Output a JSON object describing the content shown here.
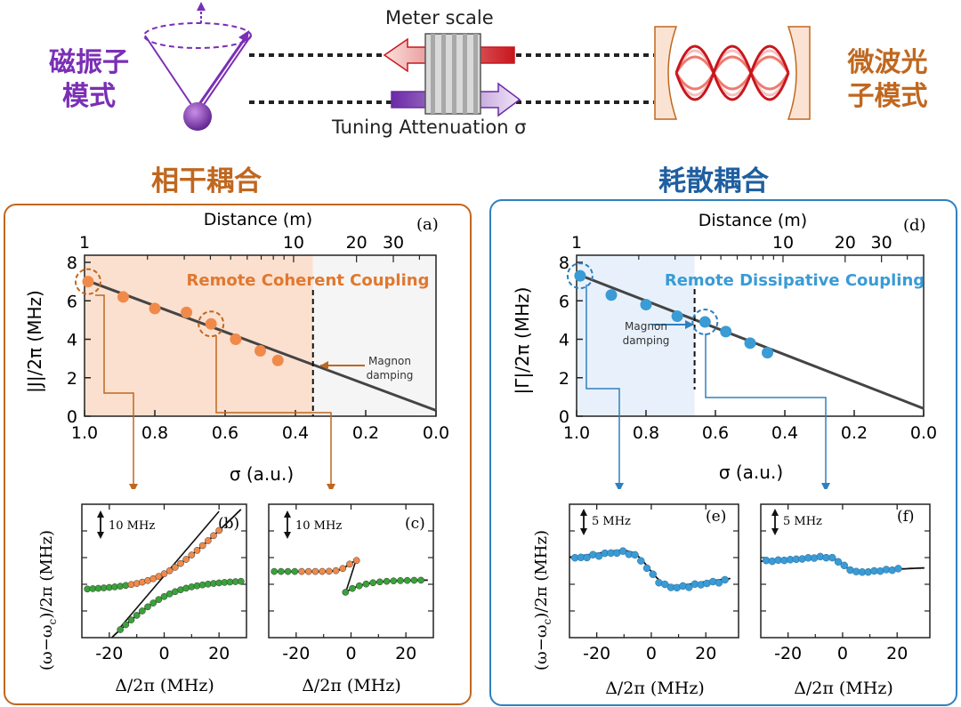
{
  "header": {
    "magnon_mode": [
      "磁振子",
      "模式"
    ],
    "photon_mode": [
      "微波光",
      "子模式"
    ],
    "meter_scale": "Meter scale",
    "tuning": "Tuning Attenuation σ",
    "coherent_title": "相干耦合",
    "dissipative_title": "耗散耦合"
  },
  "colors": {
    "orange": "#c0671f",
    "orange_light": "#f7c9a8",
    "orange_dot": "#f08a4b",
    "blue": "#2f80c0",
    "blue_dot": "#3a9bd5",
    "purple": "#7a2fb5",
    "green": "#3aa23a",
    "red": "#c8161d"
  },
  "panel_a": {
    "label": "(a)",
    "top_axis_label": "Distance (m)",
    "top_ticks": [
      "1",
      "10",
      "20",
      "30"
    ],
    "bottom_ticks": [
      "1.0",
      "0.8",
      "0.6",
      "0.4",
      "0.2",
      "0.0"
    ],
    "xlabel": "σ (a.u.)",
    "ylabel": "|J|/2π (MHz)",
    "yticks": [
      "0",
      "2",
      "4",
      "6",
      "8"
    ],
    "title": "Remote Coherent Coupling",
    "annotation": [
      "Magnon",
      "damping"
    ]
  },
  "panel_d": {
    "label": "(d)",
    "top_axis_label": "Distance (m)",
    "top_ticks": [
      "1",
      "10",
      "20",
      "30"
    ],
    "bottom_ticks": [
      "1.0",
      "0.8",
      "0.6",
      "0.4",
      "0.2",
      "0.0"
    ],
    "xlabel": "σ (a.u.)",
    "ylabel": "|Γ|/2π (MHz)",
    "yticks": [
      "0",
      "2",
      "4",
      "6",
      "8"
    ],
    "title": "Remote Dissipative Coupling",
    "annotation": [
      "Magnon",
      "damping"
    ]
  },
  "panel_b": {
    "label": "(b)",
    "scale": "10 MHz"
  },
  "panel_c": {
    "label": "(c)",
    "scale": "10 MHz"
  },
  "panel_e": {
    "label": "(e)",
    "scale": "5 MHz"
  },
  "panel_f": {
    "label": "(f)",
    "scale": "5 MHz"
  },
  "small_axes": {
    "xticks": [
      "-20",
      "0",
      "20"
    ],
    "xlabel": "Δ/2π  (MHz)",
    "ylabel": "(ω−ω",
    "ylabel_sub": "c",
    "ylabel_tail": ")/2π  (MHz)"
  },
  "chart_data": [
    {
      "type": "scatter",
      "title": "Remote Coherent Coupling",
      "xlabel": "σ (a.u.)",
      "ylabel": "|J|/2π (MHz)",
      "xlim": [
        1.0,
        0.0
      ],
      "ylim": [
        0,
        8
      ],
      "series": [
        {
          "name": "data",
          "x": [
            0.99,
            0.89,
            0.8,
            0.71,
            0.64,
            0.57,
            0.5,
            0.45
          ],
          "y": [
            7.0,
            6.2,
            5.6,
            5.4,
            4.8,
            4.0,
            3.4,
            2.9
          ]
        },
        {
          "name": "fit",
          "x": [
            1.0,
            0.0
          ],
          "y": [
            7.1,
            0.3
          ]
        }
      ],
      "magnon_damping_sigma": 0.35,
      "top_axis": {
        "label": "Distance (m)",
        "ticks": [
          1,
          10,
          20,
          30
        ]
      }
    },
    {
      "type": "scatter",
      "title": "Remote Dissipative Coupling",
      "xlabel": "σ (a.u.)",
      "ylabel": "|Γ|/2π (MHz)",
      "xlim": [
        1.0,
        0.0
      ],
      "ylim": [
        0,
        8
      ],
      "series": [
        {
          "name": "data",
          "x": [
            0.99,
            0.9,
            0.8,
            0.71,
            0.63,
            0.57,
            0.5,
            0.45
          ],
          "y": [
            7.3,
            6.3,
            5.8,
            5.2,
            4.9,
            4.4,
            3.8,
            3.3
          ]
        },
        {
          "name": "fit",
          "x": [
            1.0,
            0.0
          ],
          "y": [
            7.4,
            0.4
          ]
        }
      ],
      "magnon_damping_sigma": 0.66,
      "top_axis": {
        "label": "Distance (m)",
        "ticks": [
          1,
          10,
          20,
          30
        ]
      }
    }
  ]
}
